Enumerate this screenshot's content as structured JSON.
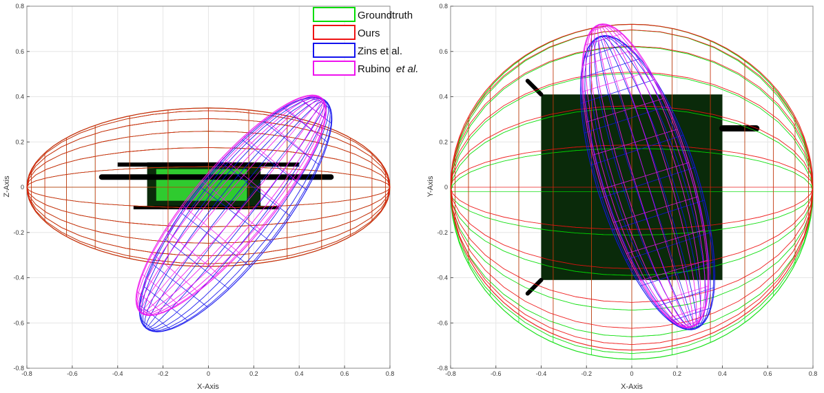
{
  "colors": {
    "groundtruth": "#00dd00",
    "ours": "#ee1111",
    "zins": "#1111ee",
    "rubino": "#ee11ee",
    "body": "#0a2a0a",
    "grid": "#e6e6e6"
  },
  "legend": {
    "entries": [
      {
        "key": "groundtruth",
        "label": "Groundtruth"
      },
      {
        "key": "ours",
        "label": "Ours"
      },
      {
        "key": "zins",
        "label": "Zins et al."
      },
      {
        "key": "rubino",
        "label": "Rubino",
        "label_italic": "et al."
      }
    ]
  },
  "chart_data": [
    {
      "type": "line",
      "xlabel": "X-Axis",
      "ylabel": "Z-Axis",
      "xlim": [
        -0.8,
        0.8
      ],
      "ylim": [
        -0.8,
        0.8
      ],
      "xticks": [
        -0.8,
        -0.6,
        -0.4,
        -0.2,
        0,
        0.2,
        0.4,
        0.6,
        0.8
      ],
      "yticks": [
        -0.8,
        -0.6,
        -0.4,
        -0.2,
        0,
        0.2,
        0.4,
        0.6,
        0.8
      ],
      "grid": true,
      "legend_position": "top-right",
      "series": [
        {
          "name": "Groundtruth",
          "key": "groundtruth",
          "center": [
            0,
            0
          ],
          "semi_axes": [
            0.8,
            0.35
          ],
          "rotation_deg": 0
        },
        {
          "name": "Ours",
          "key": "ours",
          "center": [
            0,
            0
          ],
          "semi_axes": [
            0.8,
            0.35
          ],
          "rotation_deg": 0
        },
        {
          "name": "Zins et al.",
          "key": "zins",
          "center": [
            0.12,
            -0.12
          ],
          "semi_axes": [
            0.64,
            0.2
          ],
          "rotation_deg": 52
        },
        {
          "name": "Rubino et al.",
          "key": "rubino",
          "center": [
            0.1,
            -0.08
          ],
          "semi_axes": [
            0.62,
            0.17
          ],
          "rotation_deg": 50
        }
      ]
    },
    {
      "type": "line",
      "xlabel": "X-Axis",
      "ylabel": "Y-Axis",
      "xlim": [
        -0.8,
        0.8
      ],
      "ylim": [
        -0.8,
        0.8
      ],
      "xticks": [
        -0.8,
        -0.6,
        -0.4,
        -0.2,
        0,
        0.2,
        0.4,
        0.6,
        0.8
      ],
      "yticks": [
        -0.8,
        -0.6,
        -0.4,
        -0.2,
        0,
        0.2,
        0.4,
        0.6,
        0.8
      ],
      "grid": true,
      "series": [
        {
          "name": "Groundtruth",
          "key": "groundtruth",
          "center": [
            0,
            -0.02
          ],
          "semi_axes": [
            0.8,
            0.74
          ],
          "rotation_deg": 0
        },
        {
          "name": "Ours",
          "key": "ours",
          "center": [
            0,
            0
          ],
          "semi_axes": [
            0.8,
            0.72
          ],
          "rotation_deg": 0
        },
        {
          "name": "Zins et al.",
          "key": "zins",
          "center": [
            0.07,
            0.02
          ],
          "semi_axes": [
            0.68,
            0.22
          ],
          "rotation_deg": -72
        },
        {
          "name": "Rubino et al.",
          "key": "rubino",
          "center": [
            0.06,
            0.05
          ],
          "semi_axes": [
            0.7,
            0.2
          ],
          "rotation_deg": -73
        }
      ]
    }
  ]
}
